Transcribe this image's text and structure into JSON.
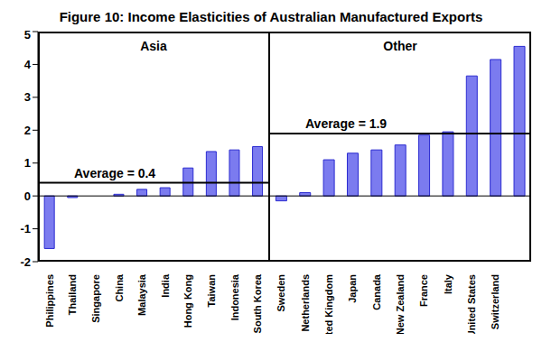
{
  "title": "Figure 10: Income Elasticities of Australian Manufactured Exports",
  "chart_data": [
    {
      "type": "bar",
      "title": "Asia",
      "categories": [
        "Philippines",
        "Thailand",
        "Singapore",
        "China",
        "Malaysia",
        "India",
        "Hong Kong",
        "Taiwan",
        "Indonesia",
        "South Korea"
      ],
      "values": [
        -1.6,
        -0.05,
        0,
        0.05,
        0.2,
        0.25,
        0.85,
        1.35,
        1.4,
        1.5
      ],
      "color": "#7b7bef",
      "ylim": [
        -2,
        5
      ],
      "yticks": [
        -2,
        -1,
        0,
        1,
        2,
        3,
        4,
        5
      ],
      "annotations": [
        {
          "text": "Average = 0.4",
          "y": 0.4
        }
      ]
    },
    {
      "type": "bar",
      "title": "Other",
      "categories": [
        "Sweden",
        "Netherlands",
        "United Kingdom",
        "Japan",
        "Canada",
        "New Zealand",
        "France",
        "Italy",
        "United States",
        "Switzerland",
        null
      ],
      "values": [
        -0.15,
        0.1,
        1.1,
        1.3,
        1.4,
        1.55,
        1.85,
        1.95,
        3.65,
        4.15,
        4.55
      ],
      "color": "#7b7bef",
      "ylim": [
        -2,
        5
      ],
      "yticks": [
        -2,
        -1,
        0,
        1,
        2,
        3,
        4,
        5
      ],
      "tick_labels": "x",
      "annotations": [
        {
          "text": "Average = 1.9",
          "y": 1.9
        }
      ]
    }
  ]
}
